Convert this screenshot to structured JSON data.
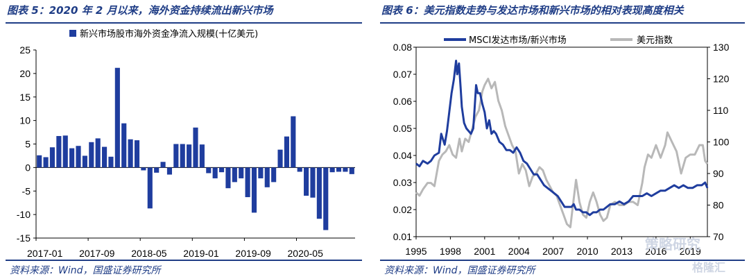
{
  "left_panel": {
    "title": "图表 5：2020 年 2 月以来，海外资金持续流出新兴市场",
    "source": "资料来源：Wind，国盛证券研究所"
  },
  "right_panel": {
    "title": "图表 6：美元指数走势与发达市场和新兴市场的相对表现高度相关",
    "source": "资料来源：Wind，国盛证券研究所"
  },
  "watermarks": {
    "wm1": "格隆汇",
    "wm2": "策略研究"
  },
  "colors": {
    "navy": "#1f3d86",
    "bar": "#1f3d9e",
    "line_blue": "#1f3d9e",
    "line_gray": "#b8b8b8"
  },
  "chart_data": [
    {
      "type": "bar",
      "title": "",
      "legend": [
        "新兴市场股市海外资金净流入规模(十亿美元)"
      ],
      "xlabel": "",
      "ylabel": "",
      "ylim": [
        -15,
        25
      ],
      "yticks": [
        -15,
        -10,
        -5,
        0,
        5,
        10,
        15,
        20,
        25
      ],
      "xtick_labels": [
        "2017-01",
        "2017-09",
        "2018-05",
        "2019-01",
        "2019-09",
        "2020-05"
      ],
      "xtick_index": [
        0,
        8,
        16,
        24,
        32,
        40
      ],
      "series": [
        {
          "name": "新兴市场股市海外资金净流入规模(十亿美元)",
          "values": [
            2.6,
            2.2,
            4.3,
            6.7,
            6.8,
            4.1,
            4.6,
            2.5,
            5.4,
            6.2,
            4.4,
            2.3,
            21.2,
            9.4,
            6.0,
            5.8,
            -0.6,
            -8.7,
            -1.1,
            1.2,
            -1.5,
            5.0,
            5.0,
            4.9,
            8.5,
            4.9,
            -1.2,
            -2.3,
            -1.0,
            -4.4,
            -3.1,
            -2.3,
            -6.3,
            -9.6,
            -2.3,
            -4.2,
            -3.1,
            3.8,
            6.6,
            10.9,
            -0.9,
            -6.0,
            -6.4,
            -10.9,
            -13.3,
            -1.0,
            -0.9,
            -0.9,
            -1.4
          ]
        }
      ]
    },
    {
      "type": "line",
      "title": "",
      "legend_placement": "top",
      "x_range": [
        1995,
        2020.5
      ],
      "xtick_labels": [
        "1995",
        "1998",
        "2001",
        "2004",
        "2007",
        "2010",
        "2013",
        "2016",
        "2019"
      ],
      "ylim_left": [
        0.01,
        0.08
      ],
      "yticks_left": [
        "0.01",
        "0.02",
        "0.03",
        "0.04",
        "0.05",
        "0.06",
        "0.07",
        "0.08"
      ],
      "ylim_right": [
        70,
        130
      ],
      "yticks_right": [
        "70",
        "80",
        "90",
        "100",
        "110",
        "120",
        "130"
      ],
      "series": [
        {
          "name": "MSCI发达市场/新兴市场",
          "axis": "left",
          "x": [
            1995.0,
            1995.3,
            1995.6,
            1996.0,
            1996.3,
            1996.6,
            1997.0,
            1997.2,
            1997.5,
            1997.7,
            1997.9,
            1998.1,
            1998.3,
            1998.5,
            1998.6,
            1998.75,
            1998.9,
            1999.0,
            1999.2,
            1999.4,
            1999.6,
            1999.8,
            2000.0,
            2000.1,
            2000.25,
            2000.4,
            2000.6,
            2000.8,
            2001.0,
            2001.2,
            2001.4,
            2001.6,
            2001.8,
            2002.0,
            2002.3,
            2002.6,
            2002.9,
            2003.2,
            2003.5,
            2003.8,
            2004.1,
            2004.4,
            2004.7,
            2005.0,
            2005.3,
            2005.6,
            2005.9,
            2006.2,
            2006.5,
            2006.8,
            2007.1,
            2007.4,
            2007.7,
            2008.0,
            2008.3,
            2008.6,
            2008.8,
            2009.0,
            2009.3,
            2009.6,
            2009.9,
            2010.2,
            2010.5,
            2010.8,
            2011.1,
            2011.4,
            2011.7,
            2012.0,
            2012.4,
            2012.8,
            2013.2,
            2013.6,
            2014.0,
            2014.4,
            2014.8,
            2015.2,
            2015.6,
            2016.0,
            2016.4,
            2016.8,
            2017.2,
            2017.6,
            2018.0,
            2018.4,
            2018.8,
            2019.2,
            2019.6,
            2020.0,
            2020.3,
            2020.5
          ],
          "y": [
            0.037,
            0.036,
            0.038,
            0.037,
            0.038,
            0.04,
            0.041,
            0.048,
            0.044,
            0.049,
            0.056,
            0.063,
            0.068,
            0.075,
            0.07,
            0.074,
            0.065,
            0.058,
            0.052,
            0.05,
            0.049,
            0.048,
            0.05,
            0.056,
            0.066,
            0.063,
            0.063,
            0.059,
            0.056,
            0.05,
            0.053,
            0.048,
            0.049,
            0.048,
            0.045,
            0.044,
            0.042,
            0.042,
            0.041,
            0.043,
            0.041,
            0.038,
            0.037,
            0.035,
            0.033,
            0.033,
            0.031,
            0.029,
            0.028,
            0.027,
            0.026,
            0.025,
            0.023,
            0.021,
            0.021,
            0.021,
            0.022,
            0.02,
            0.02,
            0.019,
            0.019,
            0.018,
            0.019,
            0.019,
            0.02,
            0.02,
            0.021,
            0.022,
            0.022,
            0.023,
            0.022,
            0.023,
            0.025,
            0.025,
            0.025,
            0.026,
            0.025,
            0.026,
            0.027,
            0.027,
            0.028,
            0.029,
            0.028,
            0.029,
            0.028,
            0.028,
            0.029,
            0.029,
            0.03,
            0.028
          ]
        },
        {
          "name": "美元指数",
          "axis": "right",
          "x": [
            1995.0,
            1995.3,
            1995.6,
            1996.0,
            1996.3,
            1996.6,
            1997.0,
            1997.3,
            1997.6,
            1997.9,
            1998.2,
            1998.5,
            1998.8,
            1999.0,
            1999.3,
            1999.6,
            1999.9,
            2000.2,
            2000.5,
            2000.8,
            2001.0,
            2001.3,
            2001.6,
            2001.9,
            2002.2,
            2002.5,
            2002.8,
            2003.1,
            2003.4,
            2003.7,
            2004.0,
            2004.3,
            2004.6,
            2004.9,
            2005.2,
            2005.5,
            2005.8,
            2006.1,
            2006.4,
            2006.7,
            2007.0,
            2007.3,
            2007.6,
            2007.9,
            2008.2,
            2008.5,
            2008.7,
            2009.0,
            2009.3,
            2009.6,
            2009.9,
            2010.2,
            2010.5,
            2010.8,
            2011.1,
            2011.4,
            2011.7,
            2012.0,
            2012.4,
            2012.8,
            2013.2,
            2013.6,
            2014.0,
            2014.4,
            2014.8,
            2015.0,
            2015.3,
            2015.6,
            2016.0,
            2016.4,
            2016.8,
            2017.0,
            2017.4,
            2017.8,
            2018.2,
            2018.6,
            2019.0,
            2019.4,
            2019.8,
            2020.1,
            2020.3,
            2020.5
          ],
          "y": [
            84,
            83,
            85,
            87,
            87,
            86,
            94,
            96,
            97,
            99,
            96,
            95,
            101,
            97,
            101,
            100,
            104,
            108,
            110,
            116,
            118,
            120,
            117,
            119,
            113,
            110,
            105,
            102,
            99,
            97,
            90,
            93,
            91,
            86,
            89,
            90,
            92,
            91,
            88,
            86,
            84,
            83,
            80,
            77,
            74,
            73,
            79,
            88,
            81,
            77,
            76,
            81,
            84,
            81,
            77,
            75,
            76,
            80,
            81,
            80,
            80,
            81,
            81,
            80,
            87,
            92,
            96,
            95,
            99,
            95,
            99,
            103,
            100,
            97,
            90,
            95,
            96,
            96,
            99,
            99,
            94,
            93
          ]
        }
      ]
    }
  ]
}
